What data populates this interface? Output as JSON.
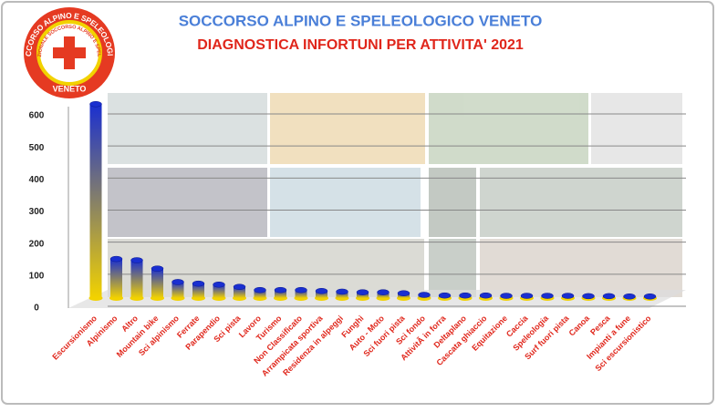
{
  "chart_data": {
    "type": "bar",
    "title": "SOCCORSO ALPINO E SPELEOLOGICO VENETO",
    "subtitle": "DIAGNOSTICA INFORTUNI PER ATTIVITA' 2021",
    "logo": {
      "top_text": "SOCCORSO ALPINO E SPELEOLOGICO",
      "inner_text": "CORPO NAZIONALE SOCCORSO ALPINO E SPELEOLOGICO",
      "bottom_text": "VENETO"
    },
    "categories": [
      "Escursionismo",
      "Alpinismo",
      "Altro",
      "Mountain bike",
      "Sci alpinismo",
      "Ferrate",
      "Parapendio",
      "Sci pista",
      "Lavoro",
      "Turismo",
      "Non Classificato",
      "Arrampicata sportiva",
      "Residenza in alpeggi",
      "Funghi",
      "Auto - Moto",
      "Sci fuori pista",
      "Sci fondo",
      "AttivitÃ  in forra",
      "Deltaplano",
      "Cascata ghiaccio",
      "Equitazione",
      "Caccia",
      "Speleologia",
      "Surf fuori pista",
      "Canoa",
      "Pesca",
      "Impianti a fune",
      "Sci escursionistico"
    ],
    "values": [
      605,
      122,
      118,
      92,
      50,
      45,
      42,
      35,
      25,
      25,
      25,
      22,
      20,
      18,
      18,
      15,
      10,
      8,
      8,
      8,
      7,
      7,
      7,
      7,
      6,
      6,
      5,
      5
    ],
    "colors": [
      "#1a2fd0",
      "#f2d200"
    ],
    "ylim": [
      0,
      600
    ],
    "yticks": [
      0,
      100,
      200,
      300,
      400,
      500,
      600
    ],
    "grid": true
  }
}
